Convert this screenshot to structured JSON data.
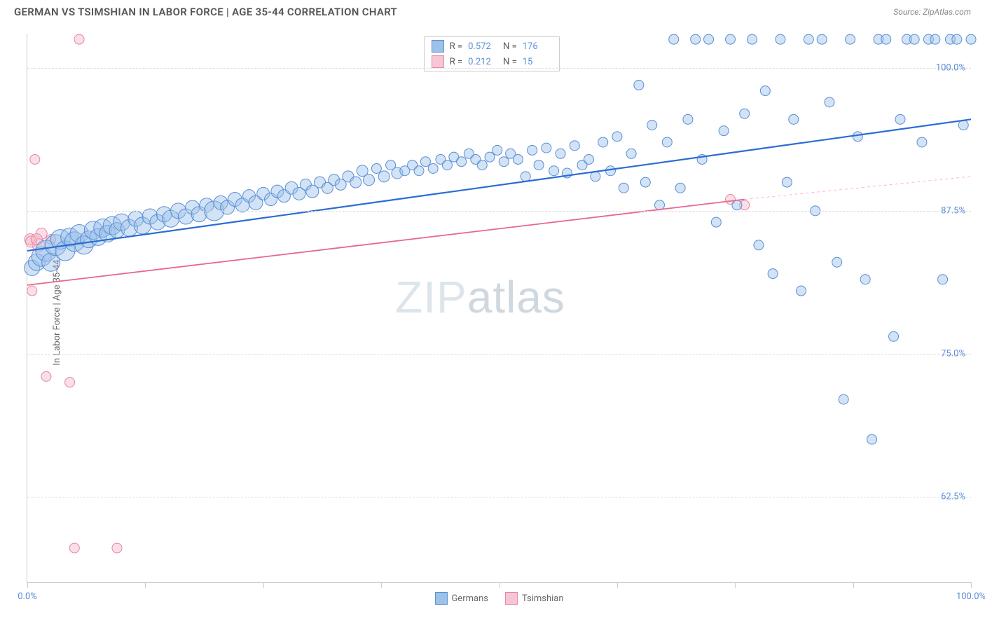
{
  "header": {
    "title": "GERMAN VS TSIMSHIAN IN LABOR FORCE | AGE 35-44 CORRELATION CHART",
    "source": "Source: ZipAtlas.com"
  },
  "axes": {
    "ylabel": "In Labor Force | Age 35-44",
    "xlim": [
      0,
      100
    ],
    "ylim": [
      55,
      103
    ],
    "yticks": [
      {
        "v": 62.5,
        "label": "62.5%"
      },
      {
        "v": 75.0,
        "label": "75.0%"
      },
      {
        "v": 87.5,
        "label": "87.5%"
      },
      {
        "v": 100.0,
        "label": "100.0%"
      }
    ],
    "xticks": [
      {
        "v": 0,
        "label": "0.0%"
      },
      {
        "v": 12.5,
        "label": ""
      },
      {
        "v": 25,
        "label": ""
      },
      {
        "v": 37.5,
        "label": ""
      },
      {
        "v": 50,
        "label": ""
      },
      {
        "v": 62.5,
        "label": ""
      },
      {
        "v": 75,
        "label": ""
      },
      {
        "v": 87.5,
        "label": ""
      },
      {
        "v": 100,
        "label": "100.0%"
      }
    ],
    "grid_color": "#dddddd",
    "axis_color": "#cccccc",
    "tick_label_color": "#5b8dd6"
  },
  "series": {
    "germans": {
      "label": "Germans",
      "color_fill": "#9cc2e8",
      "color_stroke": "#5b8dd6",
      "fill_opacity": 0.45,
      "regression": {
        "x1": 0,
        "y1": 84.0,
        "x2": 100,
        "y2": 95.5,
        "color": "#2b6cd4",
        "width": 2.2
      },
      "R": "0.572",
      "N": "176",
      "points": [
        {
          "x": 0.5,
          "y": 82.5,
          "r": 11
        },
        {
          "x": 1.0,
          "y": 83.0,
          "r": 12
        },
        {
          "x": 1.5,
          "y": 83.5,
          "r": 14
        },
        {
          "x": 2.0,
          "y": 84.0,
          "r": 15
        },
        {
          "x": 2.5,
          "y": 83.0,
          "r": 13
        },
        {
          "x": 3.0,
          "y": 84.5,
          "r": 15
        },
        {
          "x": 3.5,
          "y": 85.0,
          "r": 14
        },
        {
          "x": 4.0,
          "y": 84.0,
          "r": 14
        },
        {
          "x": 4.5,
          "y": 85.2,
          "r": 13
        },
        {
          "x": 5.0,
          "y": 84.8,
          "r": 14
        },
        {
          "x": 5.5,
          "y": 85.5,
          "r": 13
        },
        {
          "x": 6.0,
          "y": 84.5,
          "r": 13
        },
        {
          "x": 6.5,
          "y": 85.0,
          "r": 12
        },
        {
          "x": 7.0,
          "y": 85.8,
          "r": 13
        },
        {
          "x": 7.5,
          "y": 85.2,
          "r": 12
        },
        {
          "x": 8.0,
          "y": 86.0,
          "r": 13
        },
        {
          "x": 8.5,
          "y": 85.5,
          "r": 12
        },
        {
          "x": 9.0,
          "y": 86.2,
          "r": 13
        },
        {
          "x": 9.5,
          "y": 85.8,
          "r": 11
        },
        {
          "x": 10.0,
          "y": 86.5,
          "r": 12
        },
        {
          "x": 10.8,
          "y": 86.0,
          "r": 12
        },
        {
          "x": 11.5,
          "y": 86.8,
          "r": 11
        },
        {
          "x": 12.2,
          "y": 86.2,
          "r": 12
        },
        {
          "x": 13.0,
          "y": 87.0,
          "r": 11
        },
        {
          "x": 13.8,
          "y": 86.5,
          "r": 11
        },
        {
          "x": 14.5,
          "y": 87.2,
          "r": 11
        },
        {
          "x": 15.2,
          "y": 86.8,
          "r": 12
        },
        {
          "x": 16.0,
          "y": 87.5,
          "r": 11
        },
        {
          "x": 16.8,
          "y": 87.0,
          "r": 11
        },
        {
          "x": 17.5,
          "y": 87.8,
          "r": 10
        },
        {
          "x": 18.2,
          "y": 87.2,
          "r": 11
        },
        {
          "x": 19.0,
          "y": 88.0,
          "r": 10
        },
        {
          "x": 19.8,
          "y": 87.5,
          "r": 14
        },
        {
          "x": 20.5,
          "y": 88.2,
          "r": 10
        },
        {
          "x": 21.2,
          "y": 87.8,
          "r": 10
        },
        {
          "x": 22.0,
          "y": 88.5,
          "r": 10
        },
        {
          "x": 22.8,
          "y": 88.0,
          "r": 10
        },
        {
          "x": 23.5,
          "y": 88.8,
          "r": 9
        },
        {
          "x": 24.2,
          "y": 88.2,
          "r": 10
        },
        {
          "x": 25.0,
          "y": 89.0,
          "r": 9
        },
        {
          "x": 25.8,
          "y": 88.5,
          "r": 9
        },
        {
          "x": 26.5,
          "y": 89.2,
          "r": 9
        },
        {
          "x": 27.2,
          "y": 88.8,
          "r": 9
        },
        {
          "x": 28.0,
          "y": 89.5,
          "r": 9
        },
        {
          "x": 28.8,
          "y": 89.0,
          "r": 9
        },
        {
          "x": 29.5,
          "y": 89.8,
          "r": 8
        },
        {
          "x": 30.2,
          "y": 89.2,
          "r": 9
        },
        {
          "x": 31.0,
          "y": 90.0,
          "r": 8
        },
        {
          "x": 31.8,
          "y": 89.5,
          "r": 8
        },
        {
          "x": 32.5,
          "y": 90.2,
          "r": 8
        },
        {
          "x": 33.2,
          "y": 89.8,
          "r": 8
        },
        {
          "x": 34.0,
          "y": 90.5,
          "r": 8
        },
        {
          "x": 34.8,
          "y": 90.0,
          "r": 8
        },
        {
          "x": 35.5,
          "y": 91.0,
          "r": 8
        },
        {
          "x": 36.2,
          "y": 90.2,
          "r": 8
        },
        {
          "x": 37.0,
          "y": 91.2,
          "r": 7
        },
        {
          "x": 37.8,
          "y": 90.5,
          "r": 8
        },
        {
          "x": 38.5,
          "y": 91.5,
          "r": 7
        },
        {
          "x": 39.2,
          "y": 90.8,
          "r": 8
        },
        {
          "x": 40.0,
          "y": 91.0,
          "r": 7
        },
        {
          "x": 40.8,
          "y": 91.5,
          "r": 7
        },
        {
          "x": 41.5,
          "y": 91.0,
          "r": 7
        },
        {
          "x": 42.2,
          "y": 91.8,
          "r": 7
        },
        {
          "x": 43.0,
          "y": 91.2,
          "r": 7
        },
        {
          "x": 43.8,
          "y": 92.0,
          "r": 7
        },
        {
          "x": 44.5,
          "y": 91.5,
          "r": 7
        },
        {
          "x": 45.2,
          "y": 92.2,
          "r": 7
        },
        {
          "x": 46.0,
          "y": 91.8,
          "r": 7
        },
        {
          "x": 46.8,
          "y": 92.5,
          "r": 7
        },
        {
          "x": 47.5,
          "y": 92.0,
          "r": 7
        },
        {
          "x": 48.2,
          "y": 91.5,
          "r": 7
        },
        {
          "x": 49.0,
          "y": 92.2,
          "r": 7
        },
        {
          "x": 49.8,
          "y": 92.8,
          "r": 7
        },
        {
          "x": 50.5,
          "y": 91.8,
          "r": 7
        },
        {
          "x": 51.2,
          "y": 92.5,
          "r": 7
        },
        {
          "x": 52.0,
          "y": 92.0,
          "r": 7
        },
        {
          "x": 52.8,
          "y": 90.5,
          "r": 7
        },
        {
          "x": 53.5,
          "y": 92.8,
          "r": 7
        },
        {
          "x": 54.2,
          "y": 91.5,
          "r": 7
        },
        {
          "x": 55.0,
          "y": 93.0,
          "r": 7
        },
        {
          "x": 55.8,
          "y": 91.0,
          "r": 7
        },
        {
          "x": 56.5,
          "y": 92.5,
          "r": 7
        },
        {
          "x": 57.2,
          "y": 90.8,
          "r": 7
        },
        {
          "x": 58.0,
          "y": 93.2,
          "r": 7
        },
        {
          "x": 58.8,
          "y": 91.5,
          "r": 7
        },
        {
          "x": 59.5,
          "y": 92.0,
          "r": 7
        },
        {
          "x": 60.2,
          "y": 90.5,
          "r": 7
        },
        {
          "x": 61.0,
          "y": 93.5,
          "r": 7
        },
        {
          "x": 61.8,
          "y": 91.0,
          "r": 7
        },
        {
          "x": 62.5,
          "y": 94.0,
          "r": 7
        },
        {
          "x": 63.2,
          "y": 89.5,
          "r": 7
        },
        {
          "x": 64.0,
          "y": 92.5,
          "r": 7
        },
        {
          "x": 64.8,
          "y": 98.5,
          "r": 7
        },
        {
          "x": 65.5,
          "y": 90.0,
          "r": 7
        },
        {
          "x": 66.2,
          "y": 95.0,
          "r": 7
        },
        {
          "x": 67.0,
          "y": 88.0,
          "r": 7
        },
        {
          "x": 67.8,
          "y": 93.5,
          "r": 7
        },
        {
          "x": 68.5,
          "y": 102.5,
          "r": 7
        },
        {
          "x": 69.2,
          "y": 89.5,
          "r": 7
        },
        {
          "x": 70.0,
          "y": 95.5,
          "r": 7
        },
        {
          "x": 70.8,
          "y": 102.5,
          "r": 7
        },
        {
          "x": 71.5,
          "y": 92.0,
          "r": 7
        },
        {
          "x": 72.2,
          "y": 102.5,
          "r": 7
        },
        {
          "x": 73.0,
          "y": 86.5,
          "r": 7
        },
        {
          "x": 73.8,
          "y": 94.5,
          "r": 7
        },
        {
          "x": 74.5,
          "y": 102.5,
          "r": 7
        },
        {
          "x": 75.2,
          "y": 88.0,
          "r": 7
        },
        {
          "x": 76.0,
          "y": 96.0,
          "r": 7
        },
        {
          "x": 76.8,
          "y": 102.5,
          "r": 7
        },
        {
          "x": 77.5,
          "y": 84.5,
          "r": 7
        },
        {
          "x": 78.2,
          "y": 98.0,
          "r": 7
        },
        {
          "x": 79.0,
          "y": 82.0,
          "r": 7
        },
        {
          "x": 79.8,
          "y": 102.5,
          "r": 7
        },
        {
          "x": 80.5,
          "y": 90.0,
          "r": 7
        },
        {
          "x": 81.2,
          "y": 95.5,
          "r": 7
        },
        {
          "x": 82.0,
          "y": 80.5,
          "r": 7
        },
        {
          "x": 82.8,
          "y": 102.5,
          "r": 7
        },
        {
          "x": 83.5,
          "y": 87.5,
          "r": 7
        },
        {
          "x": 84.2,
          "y": 102.5,
          "r": 7
        },
        {
          "x": 85.0,
          "y": 97.0,
          "r": 7
        },
        {
          "x": 85.8,
          "y": 83.0,
          "r": 7
        },
        {
          "x": 86.5,
          "y": 71.0,
          "r": 7
        },
        {
          "x": 87.2,
          "y": 102.5,
          "r": 7
        },
        {
          "x": 88.0,
          "y": 94.0,
          "r": 7
        },
        {
          "x": 88.8,
          "y": 81.5,
          "r": 7
        },
        {
          "x": 89.5,
          "y": 67.5,
          "r": 7
        },
        {
          "x": 90.2,
          "y": 102.5,
          "r": 7
        },
        {
          "x": 91.0,
          "y": 102.5,
          "r": 7
        },
        {
          "x": 91.8,
          "y": 76.5,
          "r": 7
        },
        {
          "x": 92.5,
          "y": 95.5,
          "r": 7
        },
        {
          "x": 93.2,
          "y": 102.5,
          "r": 7
        },
        {
          "x": 94.0,
          "y": 102.5,
          "r": 7
        },
        {
          "x": 94.8,
          "y": 93.5,
          "r": 7
        },
        {
          "x": 95.5,
          "y": 102.5,
          "r": 7
        },
        {
          "x": 96.2,
          "y": 102.5,
          "r": 7
        },
        {
          "x": 97.0,
          "y": 81.5,
          "r": 7
        },
        {
          "x": 97.8,
          "y": 102.5,
          "r": 7
        },
        {
          "x": 98.5,
          "y": 102.5,
          "r": 7
        },
        {
          "x": 99.2,
          "y": 95.0,
          "r": 7
        },
        {
          "x": 100.0,
          "y": 102.5,
          "r": 7
        }
      ]
    },
    "tsimshian": {
      "label": "Tsimshian",
      "color_fill": "#f5b8c8",
      "color_stroke": "#e886a5",
      "fill_opacity": 0.45,
      "regression": {
        "x1": 0,
        "y1": 81.0,
        "x2": 76,
        "y2": 88.5,
        "color": "#e8668f",
        "width": 1.8
      },
      "regression_dash": {
        "x1": 76,
        "y1": 88.5,
        "x2": 100,
        "y2": 90.5,
        "color": "#f5b8c8"
      },
      "R": "0.212",
      "N": "15",
      "points": [
        {
          "x": 0.3,
          "y": 85.0,
          "r": 8
        },
        {
          "x": 0.5,
          "y": 80.5,
          "r": 7
        },
        {
          "x": 0.8,
          "y": 92.0,
          "r": 7
        },
        {
          "x": 1.2,
          "y": 84.5,
          "r": 9
        },
        {
          "x": 1.5,
          "y": 85.5,
          "r": 8
        },
        {
          "x": 2.0,
          "y": 73.0,
          "r": 7
        },
        {
          "x": 2.5,
          "y": 85.0,
          "r": 7
        },
        {
          "x": 4.5,
          "y": 72.5,
          "r": 7
        },
        {
          "x": 5.5,
          "y": 102.5,
          "r": 7
        },
        {
          "x": 5.0,
          "y": 58.0,
          "r": 7
        },
        {
          "x": 9.5,
          "y": 58.0,
          "r": 7
        },
        {
          "x": 74.5,
          "y": 88.5,
          "r": 7
        },
        {
          "x": 76.0,
          "y": 88.0,
          "r": 7
        },
        {
          "x": 0.4,
          "y": 84.8,
          "r": 8
        },
        {
          "x": 1.0,
          "y": 85.0,
          "r": 8
        }
      ]
    }
  },
  "legend": {
    "items": [
      {
        "key": "germans",
        "label": "Germans",
        "fill": "#9cc2e8",
        "stroke": "#5b8dd6"
      },
      {
        "key": "tsimshian",
        "label": "Tsimshian",
        "fill": "#f6c6d4",
        "stroke": "#e886a5"
      }
    ]
  },
  "stats_box": {
    "rows": [
      {
        "swatch_fill": "#9cc2e8",
        "swatch_stroke": "#5b8dd6",
        "r_label": "R =",
        "r_val": "0.572",
        "n_label": "N =",
        "n_val": "176"
      },
      {
        "swatch_fill": "#f6c6d4",
        "swatch_stroke": "#e886a5",
        "r_label": "R =",
        "r_val": "0.212",
        "n_label": "N =",
        "n_val": "15"
      }
    ]
  },
  "watermark": {
    "zip": "ZIP",
    "atlas": "atlas"
  },
  "background_color": "#ffffff"
}
